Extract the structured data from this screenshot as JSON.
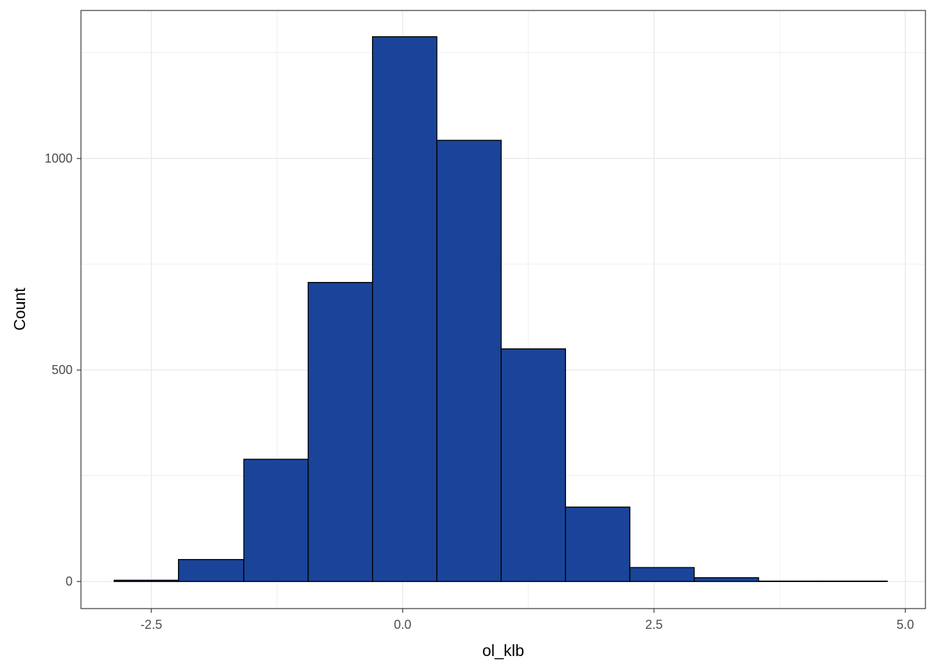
{
  "chart_data": {
    "type": "histogram",
    "title": "",
    "xlabel": "ol_klb",
    "ylabel": "Count",
    "xlim": [
      -3.2,
      5.2
    ],
    "ylim": [
      -64,
      1350
    ],
    "x_ticks": [
      -2.5,
      0.0,
      2.5,
      5.0
    ],
    "x_tick_labels": [
      "-2.5",
      "0.0",
      "2.5",
      "5.0"
    ],
    "y_ticks": [
      0,
      500,
      1000
    ],
    "y_tick_labels": [
      "0",
      "500",
      "1000"
    ],
    "grid": true,
    "bar_fill": "#1a449a",
    "bar_stroke": "#000000",
    "bins": [
      {
        "x0": -2.87,
        "x1": -2.23,
        "count": 3
      },
      {
        "x0": -2.23,
        "x1": -1.58,
        "count": 52
      },
      {
        "x0": -1.58,
        "x1": -0.94,
        "count": 289
      },
      {
        "x0": -0.94,
        "x1": -0.3,
        "count": 707
      },
      {
        "x0": -0.3,
        "x1": 0.34,
        "count": 1288
      },
      {
        "x0": 0.34,
        "x1": 0.98,
        "count": 1043
      },
      {
        "x0": 0.98,
        "x1": 1.62,
        "count": 550
      },
      {
        "x0": 1.62,
        "x1": 2.26,
        "count": 176
      },
      {
        "x0": 2.26,
        "x1": 2.9,
        "count": 33
      },
      {
        "x0": 2.9,
        "x1": 3.54,
        "count": 9
      },
      {
        "x0": 3.54,
        "x1": 4.18,
        "count": 1
      },
      {
        "x0": 4.18,
        "x1": 4.82,
        "count": 1
      }
    ]
  }
}
